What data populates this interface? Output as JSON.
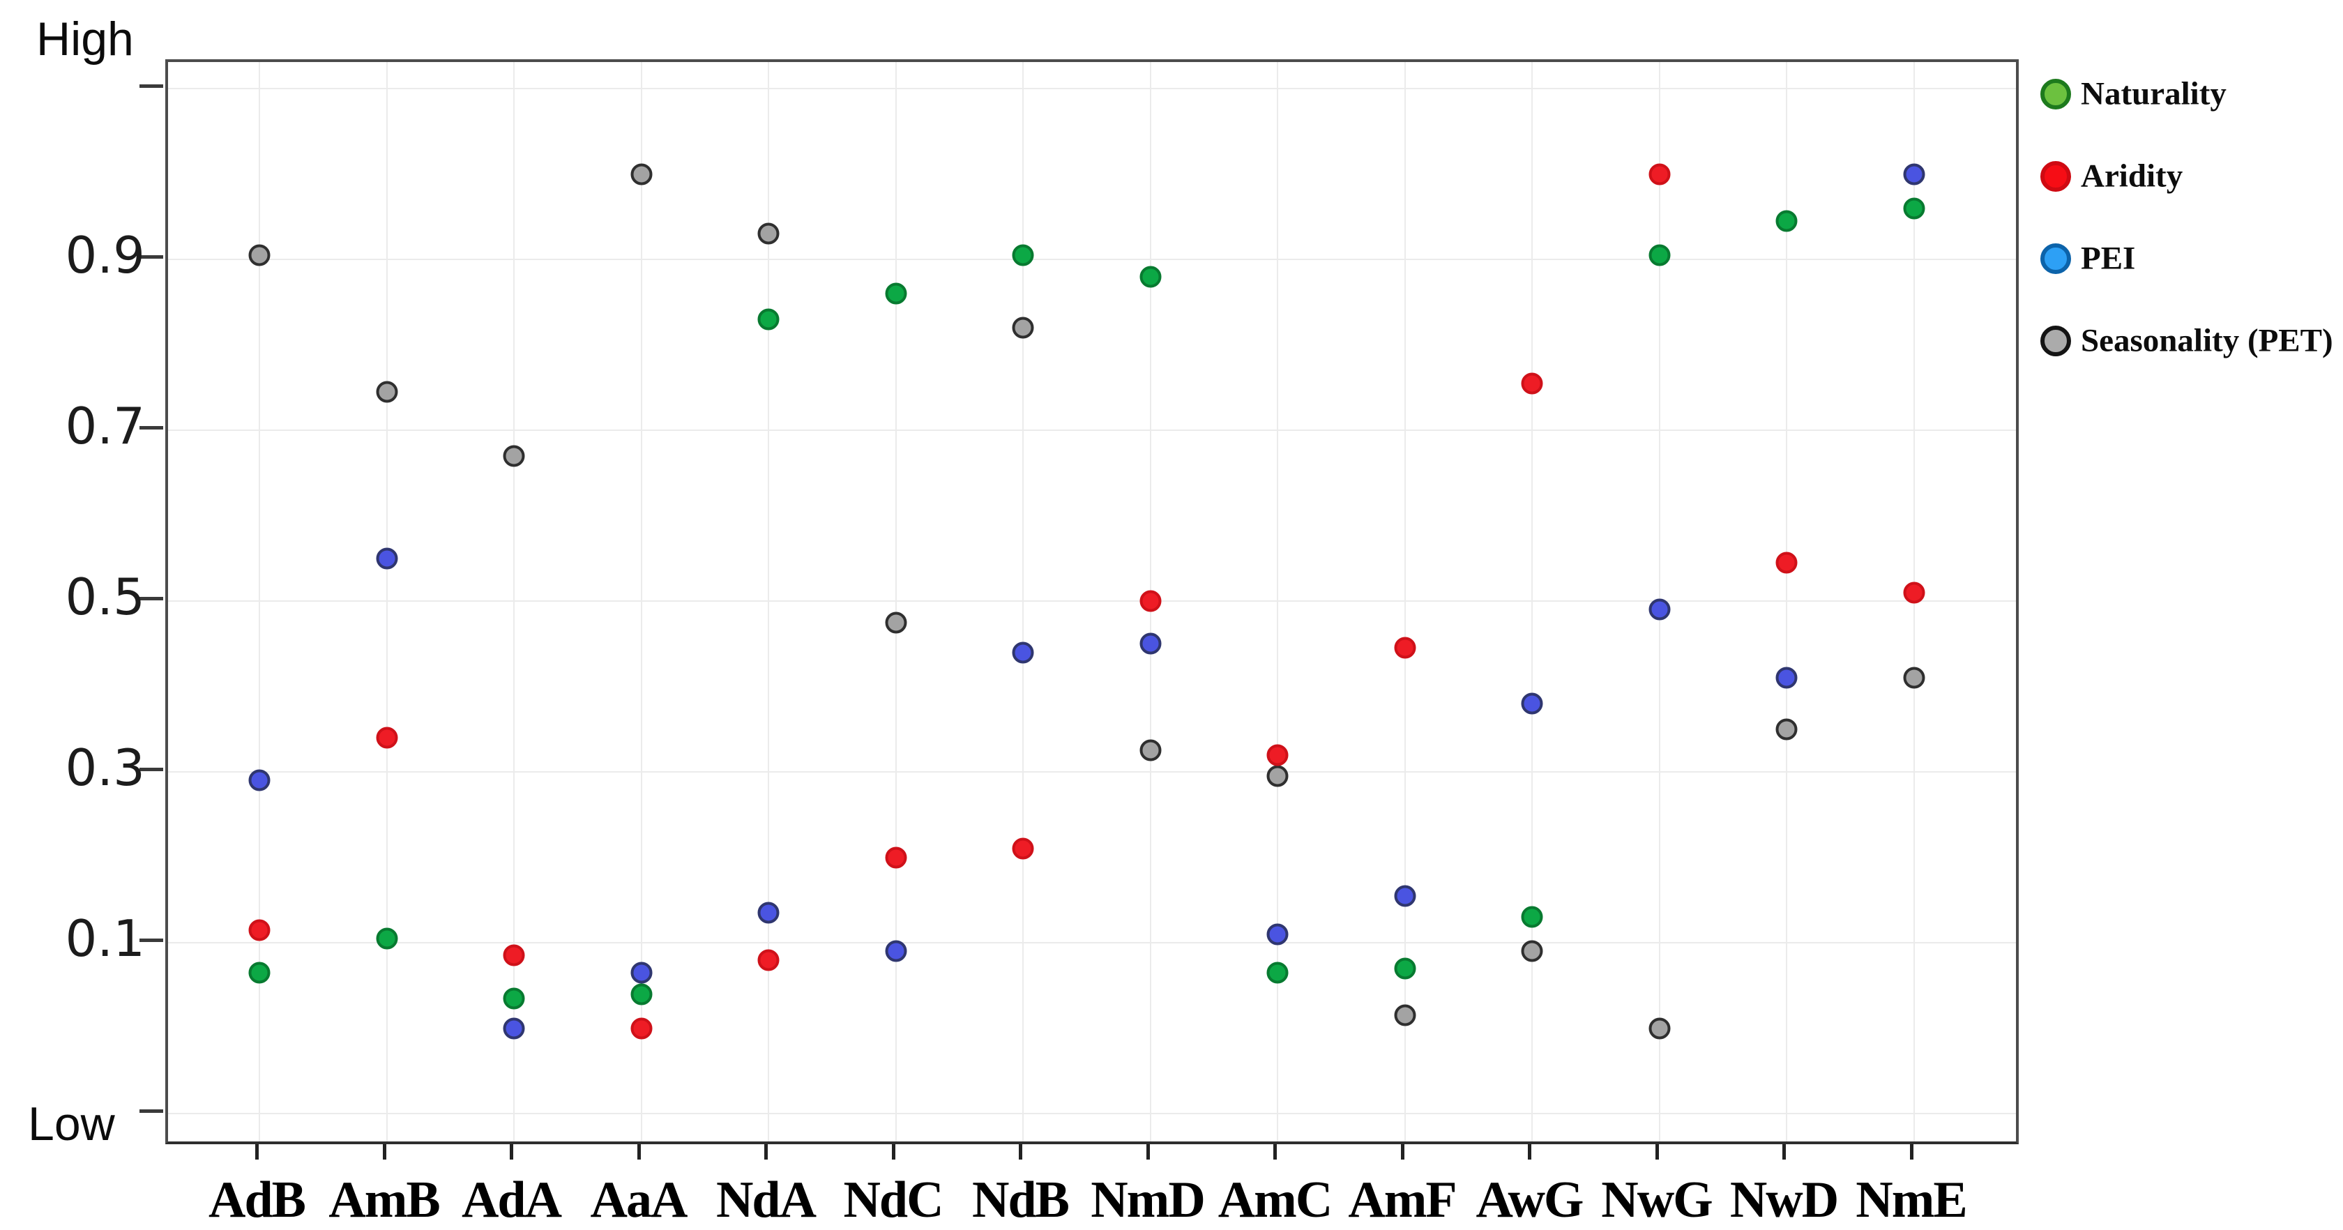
{
  "figure": {
    "y_axis": {
      "top_label": "High",
      "bottom_label": "Low",
      "tick_labels": [
        "0.9",
        "0.7",
        "0.5",
        "0.3",
        "0.1"
      ],
      "tick_values": [
        0.9,
        0.7,
        0.5,
        0.3,
        0.1
      ],
      "unlabeled_tick_values": [
        1.1,
        -0.1
      ]
    },
    "legend": {
      "position": "right-top",
      "items": [
        {
          "label": "Naturality",
          "fill": "#6cc13f",
          "stroke": "#1d7a1d"
        },
        {
          "label": "Aridity",
          "fill": "#f60d15",
          "stroke": "#cf0a12"
        },
        {
          "label": "PEI",
          "fill": "#2da0f5",
          "stroke": "#0c63aa"
        },
        {
          "label": "Seasonality (PET)",
          "fill": "#ababab",
          "stroke": "#141414"
        }
      ]
    }
  },
  "chart_data": {
    "type": "scatter",
    "title": "",
    "xlabel": "",
    "ylabel": "",
    "categories": [
      "AdB",
      "AmB",
      "AdA",
      "AaA",
      "NdA",
      "NdC",
      "NdB",
      "NmD",
      "AmC",
      "AmF",
      "AwG",
      "NwG",
      "NwD",
      "NmE"
    ],
    "series": [
      {
        "name": "Seasonality (PET)",
        "fill": "#a3a3a3",
        "stroke": "#2f2f2f",
        "values": [
          0.905,
          0.745,
          0.67,
          1.0,
          0.93,
          0.475,
          0.82,
          0.325,
          0.295,
          0.015,
          0.09,
          0.0,
          0.35,
          0.41
        ]
      },
      {
        "name": "Naturality",
        "fill": "#0ca845",
        "stroke": "#087a30",
        "values": [
          0.065,
          0.105,
          0.035,
          0.04,
          0.83,
          0.86,
          0.905,
          0.88,
          0.065,
          0.07,
          0.13,
          0.905,
          0.945,
          0.96
        ]
      },
      {
        "name": "PEI",
        "fill": "#4a54e1",
        "stroke": "#2f366f",
        "values": [
          0.29,
          0.55,
          0.0,
          0.065,
          0.135,
          0.09,
          0.44,
          0.45,
          0.11,
          0.155,
          0.38,
          0.49,
          0.41,
          1.0
        ]
      },
      {
        "name": "Aridity",
        "fill": "#ee1c25",
        "stroke": "#cf1119",
        "values": [
          0.115,
          0.34,
          0.085,
          0.0,
          0.08,
          0.2,
          0.21,
          0.5,
          0.32,
          0.445,
          0.755,
          1.0,
          0.545,
          0.51
        ]
      }
    ],
    "ylim": [
      -0.14,
      1.13
    ],
    "yticks_labeled": [
      0.9,
      0.7,
      0.5,
      0.3,
      0.1
    ],
    "yticks_unlabeled": [
      1.1,
      -0.1
    ],
    "grid": true,
    "legend_position": "right-top"
  }
}
